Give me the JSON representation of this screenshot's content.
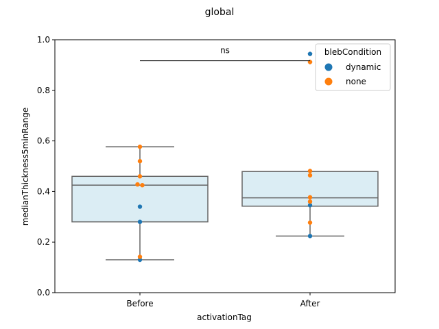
{
  "chart_data": {
    "type": "box",
    "title": "global",
    "xlabel": "activationTag",
    "ylabel": "medianThickness5minRange",
    "ylim": [
      0,
      1
    ],
    "yticks": [
      0.0,
      0.2,
      0.4,
      0.6,
      0.8,
      1.0
    ],
    "ytick_labels": [
      "0.0",
      "0.2",
      "0.4",
      "0.6",
      "0.8",
      "1.0"
    ],
    "categories": [
      "Before",
      "After"
    ],
    "box_color": "#dbedf4",
    "box_edge_color": "#666666",
    "boxes": [
      {
        "category": "Before",
        "whisker_low": 0.13,
        "q1": 0.28,
        "median": 0.425,
        "q3": 0.46,
        "whisker_high": 0.577,
        "outliers": []
      },
      {
        "category": "After",
        "whisker_low": 0.224,
        "q1": 0.342,
        "median": 0.375,
        "q3": 0.479,
        "whisker_high": 0.479,
        "outliers": [
          0.944,
          0.912
        ]
      }
    ],
    "legend": {
      "title": "blebCondition",
      "placement": "upper-right",
      "entries": [
        {
          "label": "dynamic",
          "color": "#1f77b4"
        },
        {
          "label": "none",
          "color": "#ff7f0e"
        }
      ]
    },
    "series": [
      {
        "name": "dynamic",
        "color": "#1f77b4",
        "points": [
          {
            "x": "Before",
            "y": 0.34
          },
          {
            "x": "Before",
            "y": 0.28
          },
          {
            "x": "Before",
            "y": 0.13
          },
          {
            "x": "After",
            "y": 0.944
          },
          {
            "x": "After",
            "y": 0.346
          },
          {
            "x": "After",
            "y": 0.224
          }
        ]
      },
      {
        "name": "none",
        "color": "#ff7f0e",
        "points": [
          {
            "x": "Before",
            "y": 0.577
          },
          {
            "x": "Before",
            "y": 0.52
          },
          {
            "x": "Before",
            "y": 0.46
          },
          {
            "x": "Before",
            "y": 0.428
          },
          {
            "x": "Before",
            "y": 0.425
          },
          {
            "x": "Before",
            "y": 0.142
          },
          {
            "x": "After",
            "y": 0.912
          },
          {
            "x": "After",
            "y": 0.481
          },
          {
            "x": "After",
            "y": 0.464
          },
          {
            "x": "After",
            "y": 0.377
          },
          {
            "x": "After",
            "y": 0.36
          },
          {
            "x": "After",
            "y": 0.277
          }
        ]
      }
    ],
    "annotation": {
      "text": "ns",
      "between": [
        "Before",
        "After"
      ],
      "y": 0.917
    }
  }
}
